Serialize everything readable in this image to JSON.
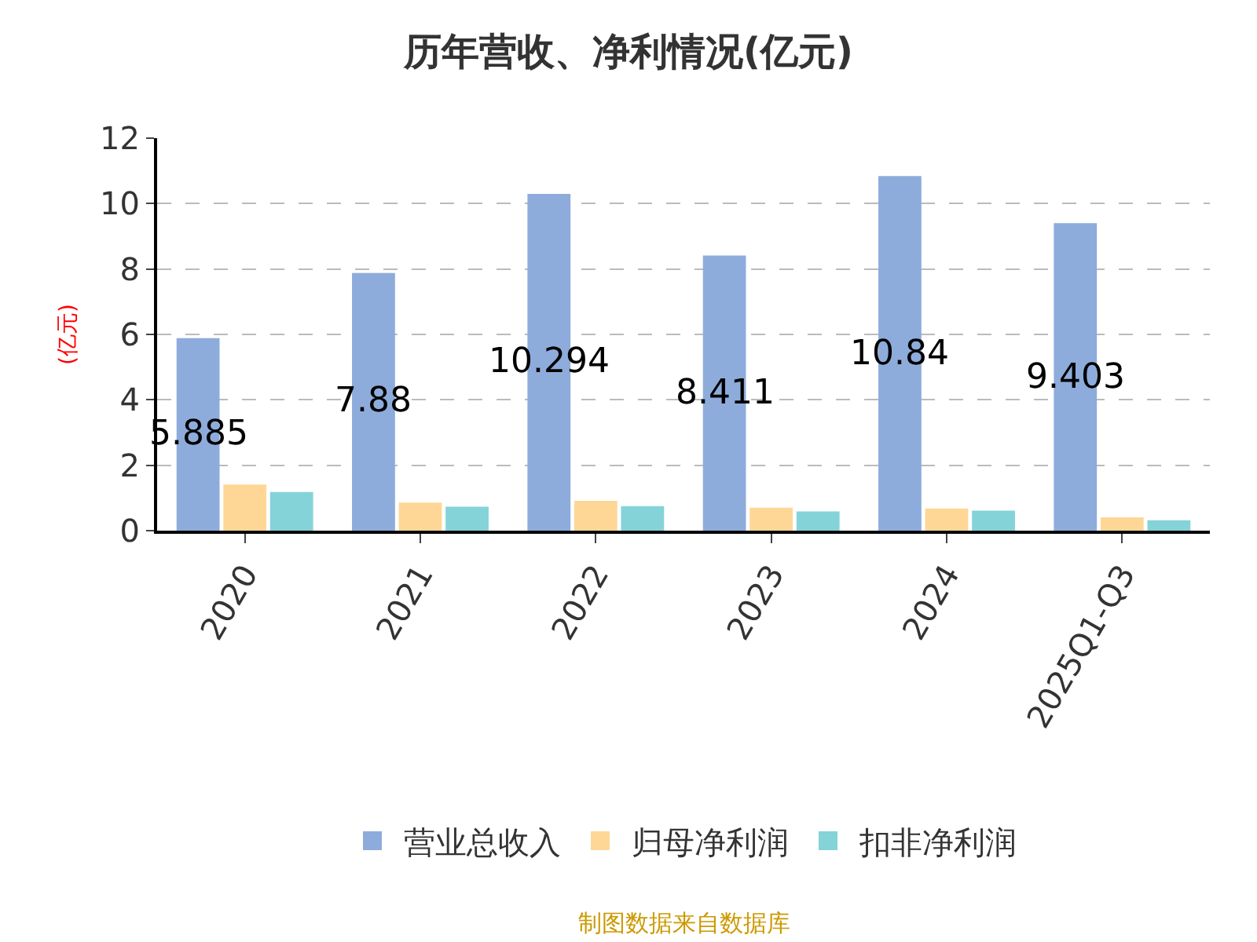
{
  "chart_data": {
    "type": "bar",
    "title": "历年营收、净利情况(亿元)",
    "ylabel": "(亿元)",
    "categories": [
      "2020",
      "2021",
      "2022",
      "2023",
      "2024",
      "2025Q1-Q3"
    ],
    "series": [
      {
        "name": "营业总收入",
        "color": "#8eacdb",
        "values": [
          5.885,
          7.88,
          10.294,
          8.411,
          10.84,
          9.403
        ],
        "value_labels": [
          "5.885",
          "7.88",
          "10.294",
          "8.411",
          "10.84",
          "9.403"
        ]
      },
      {
        "name": "归母净利润",
        "color": "#fed797",
        "values": [
          1.41,
          0.86,
          0.91,
          0.7,
          0.68,
          0.41
        ]
      },
      {
        "name": "扣非净利润",
        "color": "#84d3d9",
        "values": [
          1.18,
          0.73,
          0.75,
          0.59,
          0.61,
          0.32
        ]
      }
    ],
    "ylim": [
      0,
      12
    ],
    "yticks": [
      0,
      2,
      4,
      6,
      8,
      10,
      12
    ],
    "grid": "y",
    "legend": "bottom",
    "annotations": [
      "制图数据来自数据库"
    ]
  }
}
